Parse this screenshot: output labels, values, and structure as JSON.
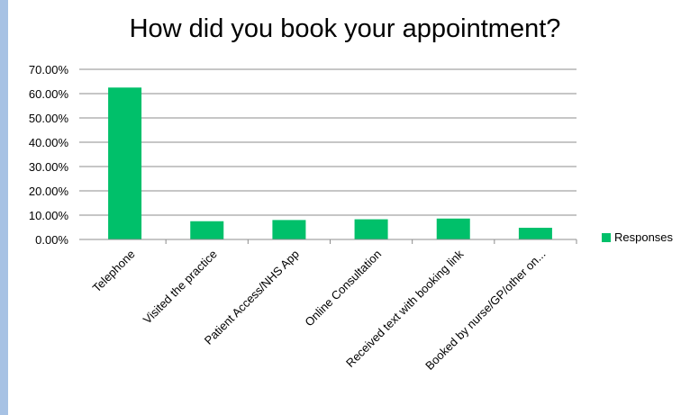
{
  "chart_data": {
    "type": "bar",
    "title": "How did you book your appointment?",
    "categories": [
      "Telephone",
      "Visited the practice",
      "Patient Access/NHS App",
      "Online Consultation",
      "Received text with booking link",
      "Booked by nurse/GP/other on..."
    ],
    "series": [
      {
        "name": "Responses",
        "values": [
          62.5,
          7.5,
          8.0,
          8.3,
          8.6,
          4.8
        ]
      }
    ],
    "y_ticks": [
      "0.00%",
      "10.00%",
      "20.00%",
      "30.00%",
      "40.00%",
      "50.00%",
      "60.00%",
      "70.00%"
    ],
    "ylim": [
      0,
      70
    ],
    "grid": true,
    "legend_position": "right",
    "bar_color": "#00c06a"
  }
}
